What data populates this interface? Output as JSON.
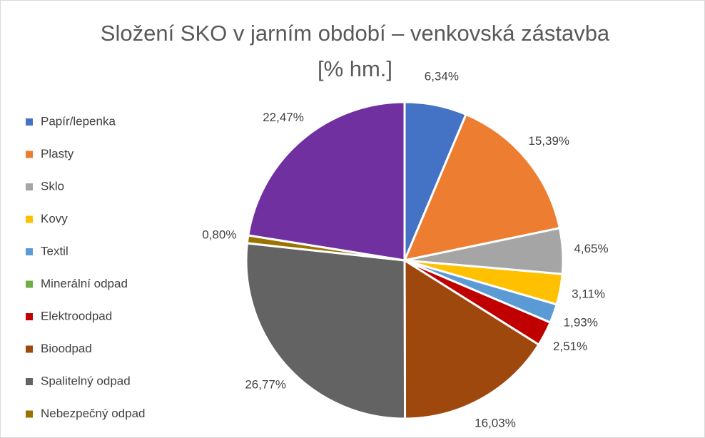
{
  "chart_data": {
    "type": "pie",
    "title": "Složení SKO v jarním období – venkovská zástavba [% hm.]",
    "categories": [
      "Papír/lepenka",
      "Plasty",
      "Sklo",
      "Kovy",
      "Textil",
      "Minerální odpad",
      "Elektroodpad",
      "Bioodpad",
      "Spalitelný odpad",
      "Nebezpečný odpad",
      null
    ],
    "values": [
      6.34,
      15.39,
      4.65,
      3.11,
      1.93,
      0,
      2.51,
      16.03,
      26.77,
      0.8,
      22.47
    ],
    "value_labels": [
      "6,34%",
      "15,39%",
      "4,65%",
      "3,11%",
      "1,93%",
      null,
      "2,51%",
      "16,03%",
      "26,77%",
      "0,80%",
      "22,47%"
    ],
    "colors": [
      "#4472c4",
      "#ed7d31",
      "#a5a5a5",
      "#ffc000",
      "#5b9bd5",
      "#70ad47",
      "#c00000",
      "#9e480e",
      "#636363",
      "#997300",
      "#7030a0"
    ],
    "legend": "left"
  }
}
